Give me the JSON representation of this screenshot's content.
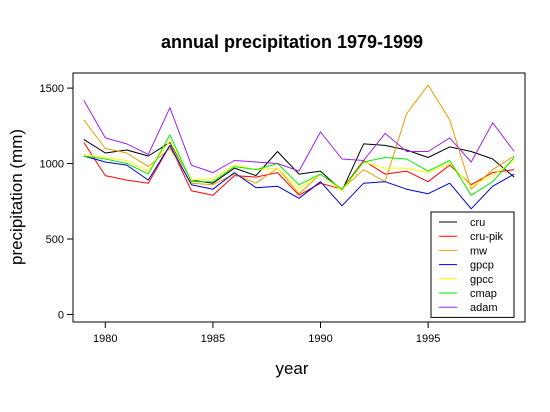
{
  "chart_data": {
    "type": "line",
    "title": "annual precipitation 1979-1999",
    "xlabel": "year",
    "ylabel": "precipitation (mm)",
    "xlim": [
      1978.5,
      1999.5
    ],
    "ylim": [
      -50,
      1600
    ],
    "x_ticks": [
      1980,
      1985,
      1990,
      1995
    ],
    "y_ticks": [
      0,
      500,
      1000,
      1500
    ],
    "legend_position": "bottom-right",
    "grid": false,
    "x": [
      1979,
      1980,
      1981,
      1982,
      1983,
      1984,
      1985,
      1986,
      1987,
      1988,
      1989,
      1990,
      1991,
      1992,
      1993,
      1994,
      1995,
      1996,
      1997,
      1998,
      1999
    ],
    "series": [
      {
        "name": "cru",
        "color": "#000000",
        "values": [
          1160,
          1070,
          1090,
          1050,
          1140,
          890,
          870,
          970,
          920,
          1080,
          930,
          950,
          820,
          1130,
          1120,
          1090,
          1040,
          1110,
          1080,
          1030,
          910
        ]
      },
      {
        "name": "cru-pik",
        "color": "#ff0000",
        "values": [
          1140,
          920,
          890,
          870,
          1120,
          820,
          790,
          920,
          910,
          940,
          790,
          870,
          830,
          1020,
          930,
          950,
          880,
          990,
          860,
          940,
          960
        ]
      },
      {
        "name": "mw",
        "color": "#e6a000",
        "values": [
          1290,
          1100,
          1070,
          980,
          1100,
          870,
          860,
          930,
          870,
          970,
          800,
          930,
          830,
          960,
          880,
          1330,
          1520,
          1290,
          830,
          960,
          1050
        ]
      },
      {
        "name": "gpcp",
        "color": "#0000cc",
        "values": [
          1050,
          1010,
          990,
          890,
          1120,
          860,
          830,
          940,
          840,
          850,
          770,
          880,
          720,
          870,
          880,
          830,
          800,
          870,
          700,
          850,
          930
        ]
      },
      {
        "name": "gpcc",
        "color": "#ffff00",
        "values": [
          1060,
          1040,
          1020,
          950,
          1150,
          890,
          900,
          990,
          960,
          970,
          830,
          930,
          820,
          1010,
          970,
          970,
          940,
          1000,
          850,
          920,
          1020
        ]
      },
      {
        "name": "cmap",
        "color": "#00ee00",
        "values": [
          1050,
          1030,
          1000,
          930,
          1190,
          880,
          880,
          980,
          960,
          1000,
          860,
          930,
          830,
          1010,
          1040,
          1030,
          950,
          1020,
          790,
          880,
          1040
        ]
      },
      {
        "name": "adam",
        "color": "#a020f0",
        "values": [
          1420,
          1170,
          1130,
          1060,
          1370,
          990,
          940,
          1020,
          1010,
          1000,
          950,
          1210,
          1030,
          1020,
          1200,
          1080,
          1080,
          1170,
          1010,
          1270,
          1080
        ]
      }
    ]
  }
}
